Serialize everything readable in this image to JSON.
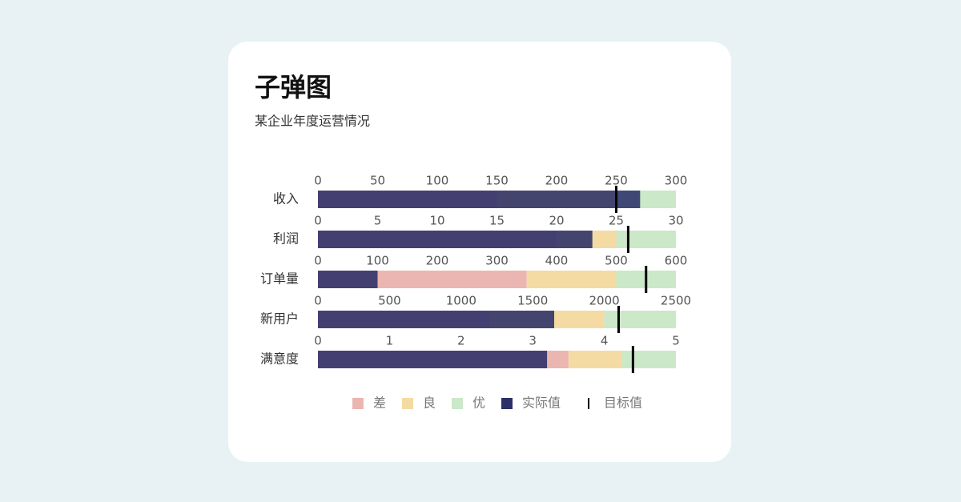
{
  "chart_data": {
    "type": "bullet",
    "title": "子弹图",
    "subtitle": "某企业年度运营情况",
    "ranges": [
      {
        "name": "差",
        "color": "#ebb6b1"
      },
      {
        "name": "良",
        "color": "#f4dba4"
      },
      {
        "name": "优",
        "color": "#cbe8c8"
      }
    ],
    "actual": {
      "name": "实际值",
      "color": "#2b3068"
    },
    "target": {
      "name": "目标值",
      "color": "#000000"
    },
    "rows": [
      {
        "category": "收入",
        "xlim": [
          0,
          300
        ],
        "xticks": [
          0,
          50,
          100,
          150,
          200,
          250,
          300
        ],
        "range_values": [
          150,
          100,
          50
        ],
        "actual": 270,
        "target": 250
      },
      {
        "category": "利润",
        "xlim": [
          0,
          30
        ],
        "xticks": [
          0,
          5,
          10,
          15,
          20,
          25,
          30
        ],
        "range_values": [
          20,
          5,
          5
        ],
        "actual": 23,
        "target": 26
      },
      {
        "category": "订单量",
        "xlim": [
          0,
          600
        ],
        "xticks": [
          0,
          100,
          200,
          300,
          400,
          500,
          600
        ],
        "range_values": [
          350,
          150,
          100
        ],
        "actual": 100,
        "target": 550
      },
      {
        "category": "新用户",
        "xlim": [
          0,
          2500
        ],
        "xticks": [
          0,
          500,
          1000,
          1500,
          2000,
          2500
        ],
        "range_values": [
          1200,
          800,
          500
        ],
        "actual": 1650,
        "target": 2100
      },
      {
        "category": "满意度",
        "xlim": [
          0,
          5
        ],
        "xticks": [
          0,
          1,
          2,
          3,
          4,
          5
        ],
        "range_values": [
          3.5,
          0.75,
          0.75
        ],
        "actual": 3.2,
        "target": 4.4
      }
    ]
  }
}
